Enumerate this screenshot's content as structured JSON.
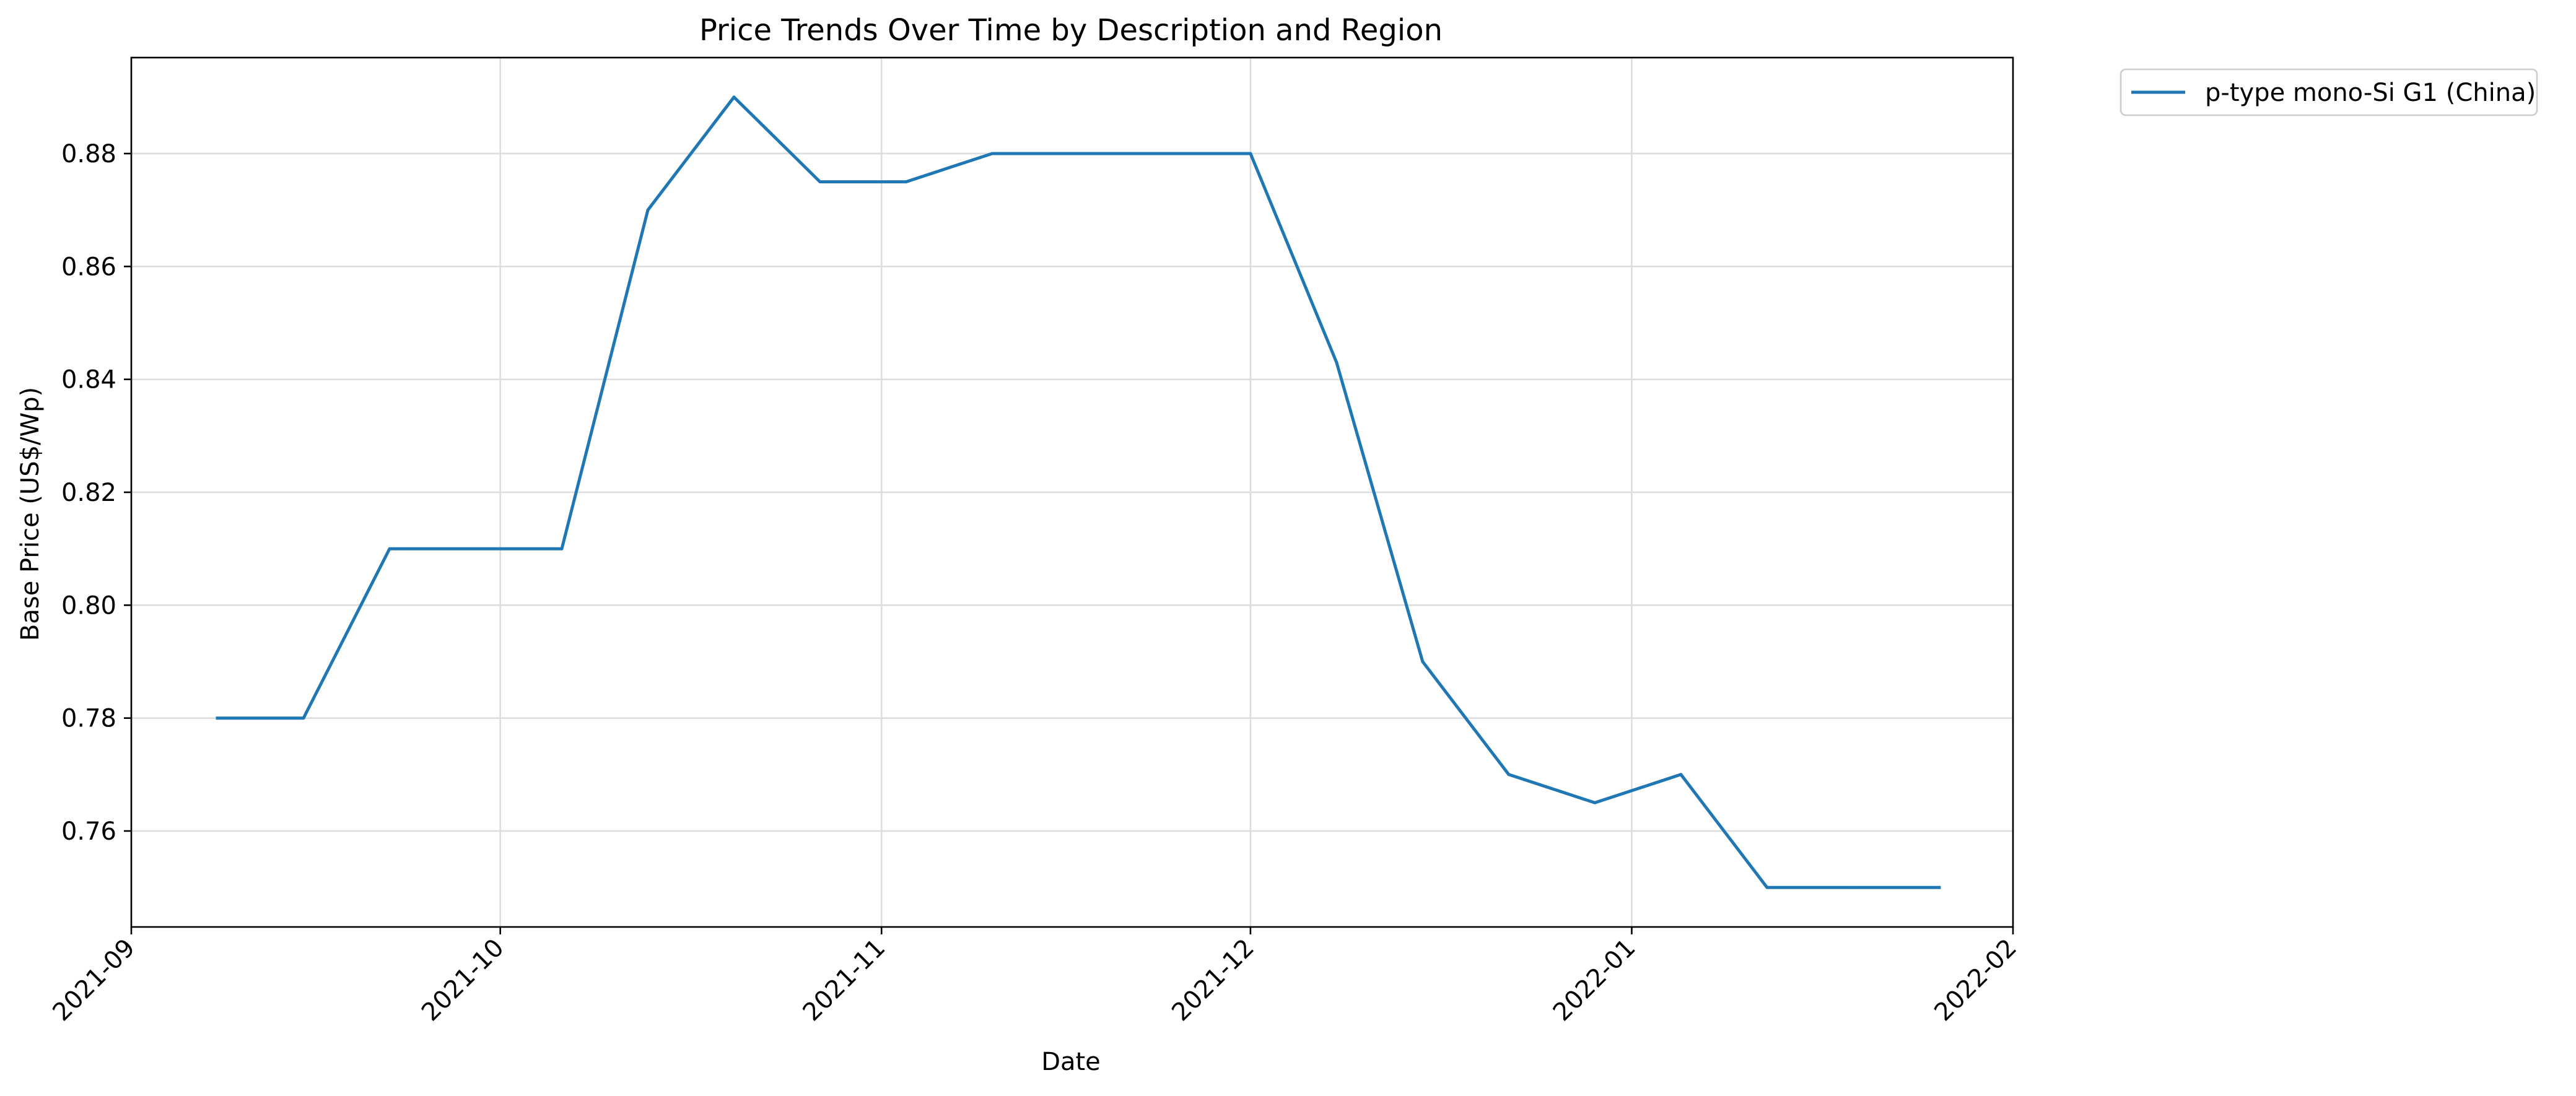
{
  "chart_data": {
    "type": "line",
    "title": "Price Trends Over Time by Description and Region",
    "xlabel": "Date",
    "ylabel": "Base Price (US$/Wp)",
    "x_axis_type": "date",
    "xlim": [
      "2021-09-01",
      "2022-02-01"
    ],
    "ylim": [
      0.743,
      0.897
    ],
    "x_ticks": [
      "2021-09-01",
      "2021-10-01",
      "2021-11-01",
      "2021-12-01",
      "2022-01-01",
      "2022-02-01"
    ],
    "x_tick_labels": [
      "2021-09",
      "2021-10",
      "2021-11",
      "2021-12",
      "2022-01",
      "2022-02"
    ],
    "y_ticks": [
      0.76,
      0.78,
      0.8,
      0.82,
      0.84,
      0.86,
      0.88
    ],
    "y_tick_labels": [
      "0.76",
      "0.78",
      "0.80",
      "0.82",
      "0.84",
      "0.86",
      "0.88"
    ],
    "grid": true,
    "legend_position": "outside upper right",
    "series": [
      {
        "name": "p-type mono-Si G1 (China)",
        "color": "#1f77b4",
        "x": [
          "2021-09-08",
          "2021-09-15",
          "2021-09-22",
          "2021-09-29",
          "2021-10-06",
          "2021-10-13",
          "2021-10-20",
          "2021-10-27",
          "2021-11-03",
          "2021-11-10",
          "2021-11-17",
          "2021-11-24",
          "2021-12-01",
          "2021-12-08",
          "2021-12-15",
          "2021-12-22",
          "2021-12-29",
          "2022-01-05",
          "2022-01-12",
          "2022-01-19",
          "2022-01-26"
        ],
        "y": [
          0.78,
          0.78,
          0.81,
          0.81,
          0.81,
          0.87,
          0.89,
          0.875,
          0.875,
          0.88,
          0.88,
          0.88,
          0.88,
          0.843,
          0.79,
          0.77,
          0.765,
          0.77,
          0.75,
          0.75,
          0.75
        ]
      }
    ]
  }
}
